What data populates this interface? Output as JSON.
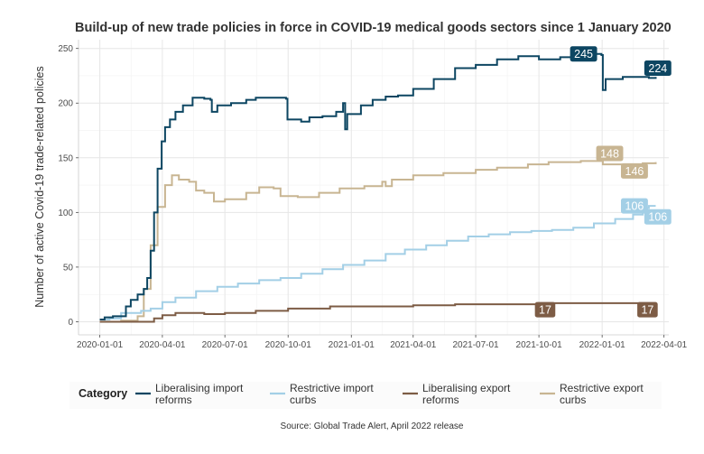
{
  "chart_data": {
    "type": "line",
    "title": "Build-up of new trade policies in force in COVID-19 medical goods sectors since 1 January 2020",
    "xlabel": "",
    "ylabel": "Number of active Covid-19 trade-related policies",
    "xlim": [
      "2019-12-01",
      "2022-04-08"
    ],
    "ylim": [
      -12,
      258
    ],
    "xticks": [
      "2020-01-01",
      "2020-04-01",
      "2020-07-01",
      "2020-10-01",
      "2021-01-01",
      "2021-04-01",
      "2021-07-01",
      "2021-10-01",
      "2022-01-01",
      "2022-04-01"
    ],
    "yticks": [
      0,
      50,
      100,
      150,
      200,
      250
    ],
    "legend": {
      "title": "Category",
      "placement": "bottom"
    },
    "source": "Source: Global Trade Alert, April 2022 release",
    "series": [
      {
        "name": "Liberalising import reforms",
        "legend_lines": [
          "Liberalising import",
          "reforms"
        ],
        "color": "#0d4662",
        "points": [
          [
            "2020-01-01",
            2
          ],
          [
            "2020-01-08",
            4
          ],
          [
            "2020-01-20",
            5
          ],
          [
            "2020-02-03",
            5
          ],
          [
            "2020-02-08",
            14
          ],
          [
            "2020-02-15",
            20
          ],
          [
            "2020-02-25",
            25
          ],
          [
            "2020-03-05",
            30
          ],
          [
            "2020-03-10",
            40
          ],
          [
            "2020-03-15",
            65
          ],
          [
            "2020-03-20",
            100
          ],
          [
            "2020-03-25",
            140
          ],
          [
            "2020-03-31",
            165
          ],
          [
            "2020-04-05",
            178
          ],
          [
            "2020-04-12",
            185
          ],
          [
            "2020-04-20",
            192
          ],
          [
            "2020-05-01",
            198
          ],
          [
            "2020-05-15",
            205
          ],
          [
            "2020-06-01",
            204
          ],
          [
            "2020-06-10",
            203
          ],
          [
            "2020-06-12",
            192
          ],
          [
            "2020-06-20",
            198
          ],
          [
            "2020-07-10",
            200
          ],
          [
            "2020-08-01",
            203
          ],
          [
            "2020-08-15",
            205
          ],
          [
            "2020-09-10",
            205
          ],
          [
            "2020-09-20",
            205
          ],
          [
            "2020-09-28",
            204
          ],
          [
            "2020-09-30",
            185
          ],
          [
            "2020-10-20",
            183
          ],
          [
            "2020-11-01",
            187
          ],
          [
            "2020-11-20",
            188
          ],
          [
            "2020-12-10",
            192
          ],
          [
            "2020-12-20",
            200
          ],
          [
            "2020-12-23",
            176
          ],
          [
            "2020-12-26",
            190
          ],
          [
            "2021-01-10",
            190
          ],
          [
            "2021-01-15",
            198
          ],
          [
            "2021-02-01",
            203
          ],
          [
            "2021-02-20",
            206
          ],
          [
            "2021-03-10",
            207
          ],
          [
            "2021-04-01",
            213
          ],
          [
            "2021-05-01",
            222
          ],
          [
            "2021-06-01",
            232
          ],
          [
            "2021-07-01",
            235
          ],
          [
            "2021-08-01",
            240
          ],
          [
            "2021-09-01",
            243
          ],
          [
            "2021-09-20",
            243
          ],
          [
            "2021-10-01",
            240
          ],
          [
            "2021-11-01",
            242
          ],
          [
            "2021-12-01",
            243
          ],
          [
            "2021-12-20",
            245
          ],
          [
            "2021-12-31",
            244
          ],
          [
            "2022-01-02",
            212
          ],
          [
            "2022-01-06",
            222
          ],
          [
            "2022-01-31",
            224
          ],
          [
            "2022-03-10",
            223
          ],
          [
            "2022-03-20",
            224
          ]
        ],
        "labels": [
          {
            "x": "2021-12-05",
            "y": 245,
            "text": "245"
          },
          {
            "x": "2022-03-23",
            "y": 232,
            "text": "224"
          }
        ]
      },
      {
        "name": "Restrictive import curbs",
        "legend_lines": [
          "Restrictive import",
          "curbs"
        ],
        "color": "#a3cfe6",
        "points": [
          [
            "2020-01-01",
            2
          ],
          [
            "2020-01-15",
            3
          ],
          [
            "2020-02-01",
            8
          ],
          [
            "2020-03-01",
            10
          ],
          [
            "2020-03-15",
            12
          ],
          [
            "2020-04-01",
            18
          ],
          [
            "2020-04-20",
            22
          ],
          [
            "2020-05-20",
            28
          ],
          [
            "2020-06-20",
            32
          ],
          [
            "2020-07-20",
            35
          ],
          [
            "2020-08-20",
            38
          ],
          [
            "2020-09-20",
            40
          ],
          [
            "2020-10-20",
            44
          ],
          [
            "2020-11-20",
            48
          ],
          [
            "2020-12-20",
            52
          ],
          [
            "2021-01-20",
            56
          ],
          [
            "2021-02-20",
            62
          ],
          [
            "2021-03-20",
            66
          ],
          [
            "2021-04-20",
            70
          ],
          [
            "2021-05-20",
            74
          ],
          [
            "2021-06-20",
            78
          ],
          [
            "2021-07-20",
            80
          ],
          [
            "2021-08-20",
            82
          ],
          [
            "2021-09-20",
            83
          ],
          [
            "2021-10-20",
            84
          ],
          [
            "2021-11-20",
            86
          ],
          [
            "2021-12-20",
            90
          ],
          [
            "2022-01-20",
            94
          ],
          [
            "2022-02-15",
            98
          ],
          [
            "2022-03-01",
            104
          ],
          [
            "2022-03-10",
            106
          ],
          [
            "2022-03-20",
            106
          ]
        ],
        "labels": [
          {
            "x": "2022-02-17",
            "y": 106,
            "text": "106"
          },
          {
            "x": "2022-03-23",
            "y": 96,
            "text": "106"
          }
        ]
      },
      {
        "name": "Liberalising export reforms",
        "legend_lines": [
          "Liberalising export",
          "reforms"
        ],
        "color": "#7d5c45",
        "points": [
          [
            "2020-01-01",
            0
          ],
          [
            "2020-02-01",
            0
          ],
          [
            "2020-03-01",
            0
          ],
          [
            "2020-03-20",
            3
          ],
          [
            "2020-04-01",
            6
          ],
          [
            "2020-04-20",
            8
          ],
          [
            "2020-06-01",
            7
          ],
          [
            "2020-07-01",
            8
          ],
          [
            "2020-08-15",
            10
          ],
          [
            "2020-10-01",
            12
          ],
          [
            "2020-12-01",
            14
          ],
          [
            "2021-02-01",
            14
          ],
          [
            "2021-04-01",
            15
          ],
          [
            "2021-06-01",
            16
          ],
          [
            "2021-08-01",
            16
          ],
          [
            "2021-10-01",
            17
          ],
          [
            "2022-01-01",
            17
          ],
          [
            "2022-03-20",
            17
          ]
        ],
        "labels": [
          {
            "x": "2021-10-10",
            "y": 11,
            "text": "17"
          },
          {
            "x": "2022-03-08",
            "y": 11,
            "text": "17"
          }
        ]
      },
      {
        "name": "Restrictive export curbs",
        "legend_lines": [
          "Restrictive export",
          "curbs"
        ],
        "color": "#c8b592",
        "points": [
          [
            "2020-01-01",
            0
          ],
          [
            "2020-02-01",
            1
          ],
          [
            "2020-02-25",
            5
          ],
          [
            "2020-03-05",
            30
          ],
          [
            "2020-03-15",
            70
          ],
          [
            "2020-03-25",
            105
          ],
          [
            "2020-04-05",
            125
          ],
          [
            "2020-04-15",
            134
          ],
          [
            "2020-04-25",
            130
          ],
          [
            "2020-05-10",
            128
          ],
          [
            "2020-05-20",
            120
          ],
          [
            "2020-06-01",
            118
          ],
          [
            "2020-06-15",
            110
          ],
          [
            "2020-07-01",
            112
          ],
          [
            "2020-08-01",
            118
          ],
          [
            "2020-08-20",
            123
          ],
          [
            "2020-09-10",
            122
          ],
          [
            "2020-09-20",
            115
          ],
          [
            "2020-10-15",
            114
          ],
          [
            "2020-11-15",
            118
          ],
          [
            "2020-12-15",
            122
          ],
          [
            "2021-01-20",
            124
          ],
          [
            "2021-02-15",
            128
          ],
          [
            "2021-02-20",
            124
          ],
          [
            "2021-03-01",
            130
          ],
          [
            "2021-04-01",
            134
          ],
          [
            "2021-05-15",
            136
          ],
          [
            "2021-07-01",
            139
          ],
          [
            "2021-08-01",
            141
          ],
          [
            "2021-09-15",
            144
          ],
          [
            "2021-10-15",
            146
          ],
          [
            "2021-12-01",
            147
          ],
          [
            "2021-12-31",
            148
          ],
          [
            "2022-01-02",
            144
          ],
          [
            "2022-02-01",
            144
          ],
          [
            "2022-03-01",
            145
          ],
          [
            "2022-03-20",
            146
          ]
        ],
        "labels": [
          {
            "x": "2022-01-12",
            "y": 154,
            "text": "148"
          },
          {
            "x": "2022-02-17",
            "y": 138,
            "text": "146"
          }
        ]
      }
    ]
  }
}
